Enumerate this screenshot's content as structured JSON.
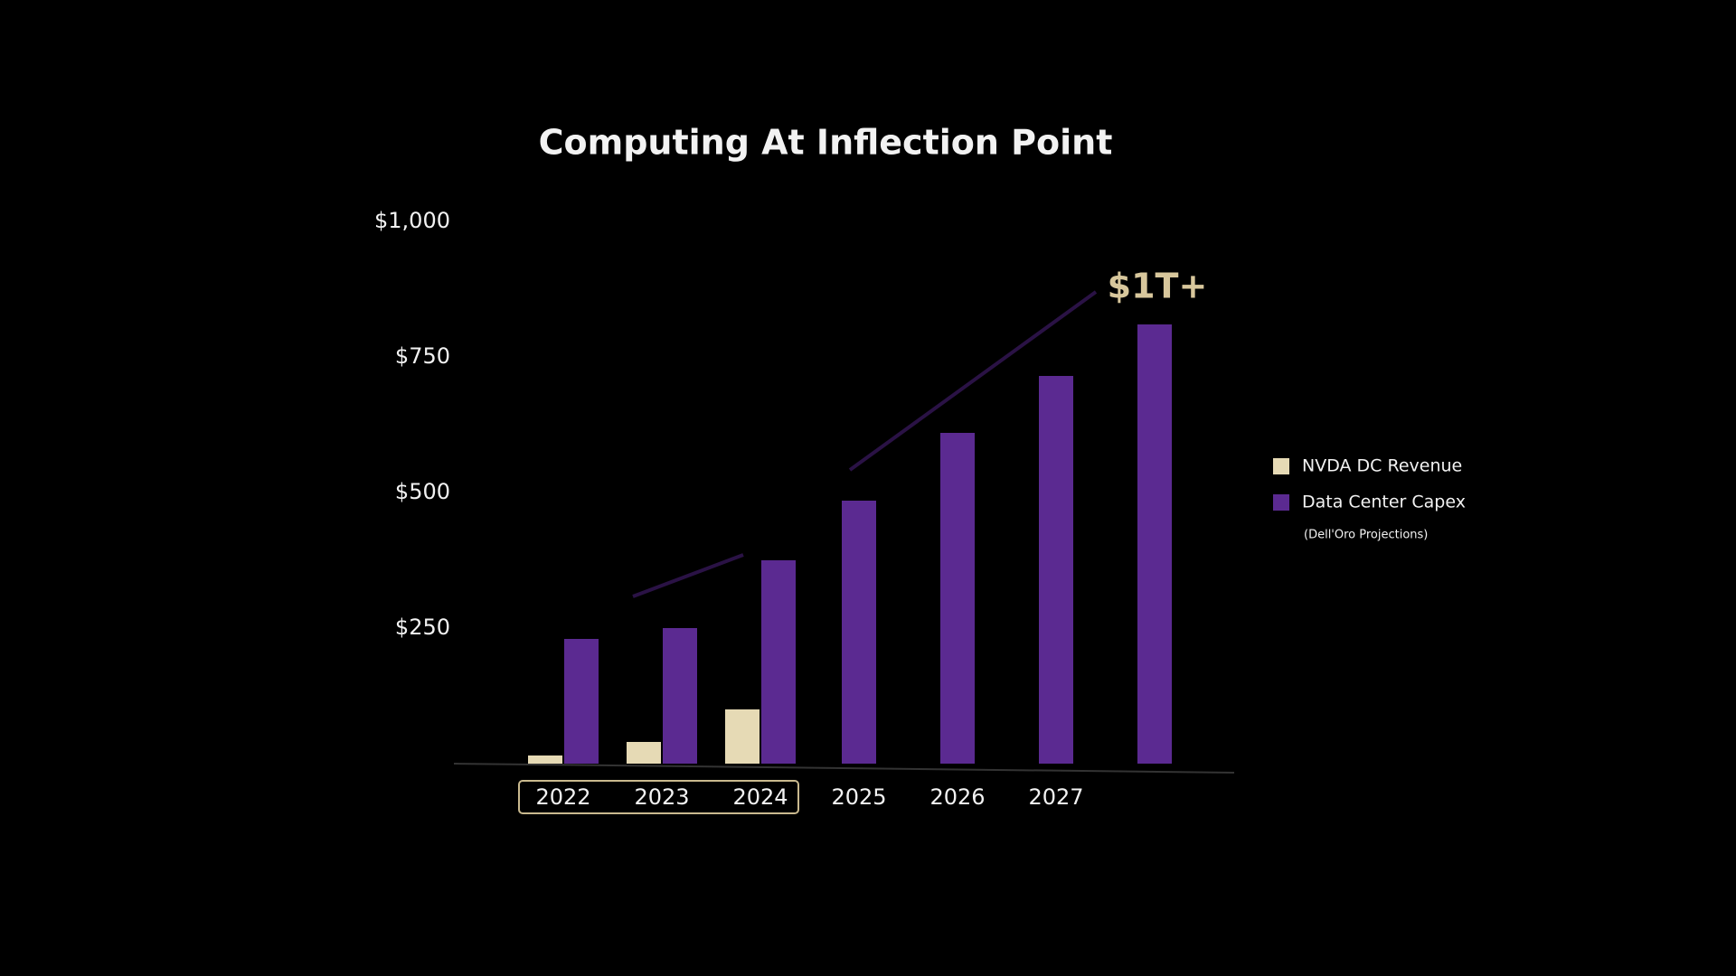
{
  "chart_data": {
    "type": "bar",
    "title": "Computing At Inflection Point",
    "annotation": "$1T+",
    "legend_note": "(Dell'Oro Projections)",
    "categories": [
      "2022",
      "2023",
      "2024",
      "2025",
      "2026",
      "2027",
      null
    ],
    "series": [
      {
        "name": "NVDA DC Revenue",
        "color": "#e6dab5",
        "values": [
          15,
          40,
          100,
          null,
          null,
          null,
          null
        ]
      },
      {
        "name": "Data Center Capex",
        "color": "#5b2a91",
        "values": [
          230,
          250,
          375,
          485,
          610,
          715,
          810
        ]
      }
    ],
    "ylim": [
      0,
      1000
    ],
    "yticks": [
      {
        "value": 250,
        "label": "$250"
      },
      {
        "value": 500,
        "label": "$500"
      },
      {
        "value": 750,
        "label": "$750"
      },
      {
        "value": 1000,
        "label": "$1,000"
      }
    ],
    "grid": false,
    "legend": "right"
  }
}
